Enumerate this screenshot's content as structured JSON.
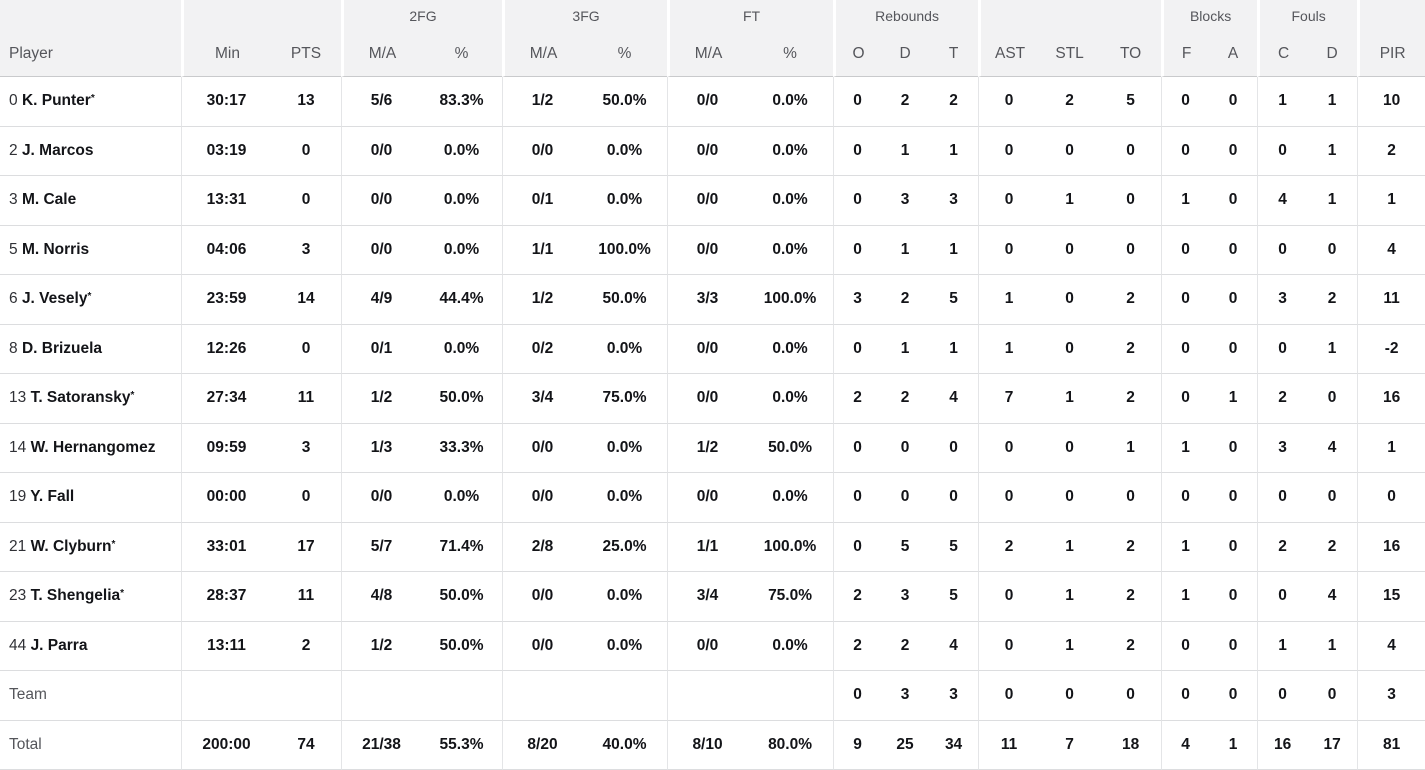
{
  "colors": {
    "header_bg": "#f2f2f3",
    "header_text": "#55565b",
    "body_text": "#131418",
    "row_border": "#dcdddf",
    "group_border": "#e4e5e7"
  },
  "header": {
    "groups": {
      "fg2": "2FG",
      "fg3": "3FG",
      "ft": "FT",
      "rebounds": "Rebounds",
      "blocks": "Blocks",
      "fouls": "Fouls"
    },
    "player": "Player",
    "min": "Min",
    "pts": "PTS",
    "ma": "M/A",
    "pct": "%",
    "reb_o": "O",
    "reb_d": "D",
    "reb_t": "T",
    "ast": "AST",
    "stl": "STL",
    "to": "TO",
    "blk_f": "F",
    "blk_a": "A",
    "foul_c": "C",
    "foul_d": "D",
    "pir": "PIR"
  },
  "rows": [
    {
      "type": "player",
      "num": "0",
      "name": "K. Punter",
      "star": "*",
      "min": "30:17",
      "pts": "13",
      "fg2_ma": "5/6",
      "fg2_pct": "83.3%",
      "fg3_ma": "1/2",
      "fg3_pct": "50.0%",
      "ft_ma": "0/0",
      "ft_pct": "0.0%",
      "ro": "0",
      "rd": "2",
      "rt": "2",
      "ast": "0",
      "stl": "2",
      "to": "5",
      "bf": "0",
      "ba": "0",
      "fc": "1",
      "fd": "1",
      "pir": "10"
    },
    {
      "type": "player",
      "num": "2",
      "name": "J. Marcos",
      "star": "",
      "min": "03:19",
      "pts": "0",
      "fg2_ma": "0/0",
      "fg2_pct": "0.0%",
      "fg3_ma": "0/0",
      "fg3_pct": "0.0%",
      "ft_ma": "0/0",
      "ft_pct": "0.0%",
      "ro": "0",
      "rd": "1",
      "rt": "1",
      "ast": "0",
      "stl": "0",
      "to": "0",
      "bf": "0",
      "ba": "0",
      "fc": "0",
      "fd": "1",
      "pir": "2"
    },
    {
      "type": "player",
      "num": "3",
      "name": "M. Cale",
      "star": "",
      "min": "13:31",
      "pts": "0",
      "fg2_ma": "0/0",
      "fg2_pct": "0.0%",
      "fg3_ma": "0/1",
      "fg3_pct": "0.0%",
      "ft_ma": "0/0",
      "ft_pct": "0.0%",
      "ro": "0",
      "rd": "3",
      "rt": "3",
      "ast": "0",
      "stl": "1",
      "to": "0",
      "bf": "1",
      "ba": "0",
      "fc": "4",
      "fd": "1",
      "pir": "1"
    },
    {
      "type": "player",
      "num": "5",
      "name": "M. Norris",
      "star": "",
      "min": "04:06",
      "pts": "3",
      "fg2_ma": "0/0",
      "fg2_pct": "0.0%",
      "fg3_ma": "1/1",
      "fg3_pct": "100.0%",
      "ft_ma": "0/0",
      "ft_pct": "0.0%",
      "ro": "0",
      "rd": "1",
      "rt": "1",
      "ast": "0",
      "stl": "0",
      "to": "0",
      "bf": "0",
      "ba": "0",
      "fc": "0",
      "fd": "0",
      "pir": "4"
    },
    {
      "type": "player",
      "num": "6",
      "name": "J. Vesely",
      "star": "*",
      "min": "23:59",
      "pts": "14",
      "fg2_ma": "4/9",
      "fg2_pct": "44.4%",
      "fg3_ma": "1/2",
      "fg3_pct": "50.0%",
      "ft_ma": "3/3",
      "ft_pct": "100.0%",
      "ro": "3",
      "rd": "2",
      "rt": "5",
      "ast": "1",
      "stl": "0",
      "to": "2",
      "bf": "0",
      "ba": "0",
      "fc": "3",
      "fd": "2",
      "pir": "11"
    },
    {
      "type": "player",
      "num": "8",
      "name": "D. Brizuela",
      "star": "",
      "min": "12:26",
      "pts": "0",
      "fg2_ma": "0/1",
      "fg2_pct": "0.0%",
      "fg3_ma": "0/2",
      "fg3_pct": "0.0%",
      "ft_ma": "0/0",
      "ft_pct": "0.0%",
      "ro": "0",
      "rd": "1",
      "rt": "1",
      "ast": "1",
      "stl": "0",
      "to": "2",
      "bf": "0",
      "ba": "0",
      "fc": "0",
      "fd": "1",
      "pir": "-2"
    },
    {
      "type": "player",
      "num": "13",
      "name": "T. Satoransky",
      "star": "*",
      "min": "27:34",
      "pts": "11",
      "fg2_ma": "1/2",
      "fg2_pct": "50.0%",
      "fg3_ma": "3/4",
      "fg3_pct": "75.0%",
      "ft_ma": "0/0",
      "ft_pct": "0.0%",
      "ro": "2",
      "rd": "2",
      "rt": "4",
      "ast": "7",
      "stl": "1",
      "to": "2",
      "bf": "0",
      "ba": "1",
      "fc": "2",
      "fd": "0",
      "pir": "16"
    },
    {
      "type": "player",
      "num": "14",
      "name": "W. Hernangomez",
      "star": "",
      "min": "09:59",
      "pts": "3",
      "fg2_ma": "1/3",
      "fg2_pct": "33.3%",
      "fg3_ma": "0/0",
      "fg3_pct": "0.0%",
      "ft_ma": "1/2",
      "ft_pct": "50.0%",
      "ro": "0",
      "rd": "0",
      "rt": "0",
      "ast": "0",
      "stl": "0",
      "to": "1",
      "bf": "1",
      "ba": "0",
      "fc": "3",
      "fd": "4",
      "pir": "1"
    },
    {
      "type": "player",
      "num": "19",
      "name": "Y. Fall",
      "star": "",
      "min": "00:00",
      "pts": "0",
      "fg2_ma": "0/0",
      "fg2_pct": "0.0%",
      "fg3_ma": "0/0",
      "fg3_pct": "0.0%",
      "ft_ma": "0/0",
      "ft_pct": "0.0%",
      "ro": "0",
      "rd": "0",
      "rt": "0",
      "ast": "0",
      "stl": "0",
      "to": "0",
      "bf": "0",
      "ba": "0",
      "fc": "0",
      "fd": "0",
      "pir": "0"
    },
    {
      "type": "player",
      "num": "21",
      "name": "W. Clyburn",
      "star": "*",
      "min": "33:01",
      "pts": "17",
      "fg2_ma": "5/7",
      "fg2_pct": "71.4%",
      "fg3_ma": "2/8",
      "fg3_pct": "25.0%",
      "ft_ma": "1/1",
      "ft_pct": "100.0%",
      "ro": "0",
      "rd": "5",
      "rt": "5",
      "ast": "2",
      "stl": "1",
      "to": "2",
      "bf": "1",
      "ba": "0",
      "fc": "2",
      "fd": "2",
      "pir": "16"
    },
    {
      "type": "player",
      "num": "23",
      "name": "T. Shengelia",
      "star": "*",
      "min": "28:37",
      "pts": "11",
      "fg2_ma": "4/8",
      "fg2_pct": "50.0%",
      "fg3_ma": "0/0",
      "fg3_pct": "0.0%",
      "ft_ma": "3/4",
      "ft_pct": "75.0%",
      "ro": "2",
      "rd": "3",
      "rt": "5",
      "ast": "0",
      "stl": "1",
      "to": "2",
      "bf": "1",
      "ba": "0",
      "fc": "0",
      "fd": "4",
      "pir": "15"
    },
    {
      "type": "player",
      "num": "44",
      "name": "J. Parra",
      "star": "",
      "min": "13:11",
      "pts": "2",
      "fg2_ma": "1/2",
      "fg2_pct": "50.0%",
      "fg3_ma": "0/0",
      "fg3_pct": "0.0%",
      "ft_ma": "0/0",
      "ft_pct": "0.0%",
      "ro": "2",
      "rd": "2",
      "rt": "4",
      "ast": "0",
      "stl": "1",
      "to": "2",
      "bf": "0",
      "ba": "0",
      "fc": "1",
      "fd": "1",
      "pir": "4"
    },
    {
      "type": "team",
      "label": "Team",
      "min": "",
      "pts": "",
      "fg2_ma": "",
      "fg2_pct": "",
      "fg3_ma": "",
      "fg3_pct": "",
      "ft_ma": "",
      "ft_pct": "",
      "ro": "0",
      "rd": "3",
      "rt": "3",
      "ast": "0",
      "stl": "0",
      "to": "0",
      "bf": "0",
      "ba": "0",
      "fc": "0",
      "fd": "0",
      "pir": "3"
    },
    {
      "type": "total",
      "label": "Total",
      "min": "200:00",
      "pts": "74",
      "fg2_ma": "21/38",
      "fg2_pct": "55.3%",
      "fg3_ma": "8/20",
      "fg3_pct": "40.0%",
      "ft_ma": "8/10",
      "ft_pct": "80.0%",
      "ro": "9",
      "rd": "25",
      "rt": "34",
      "ast": "11",
      "stl": "7",
      "to": "18",
      "bf": "4",
      "ba": "1",
      "fc": "16",
      "fd": "17",
      "pir": "81"
    }
  ]
}
